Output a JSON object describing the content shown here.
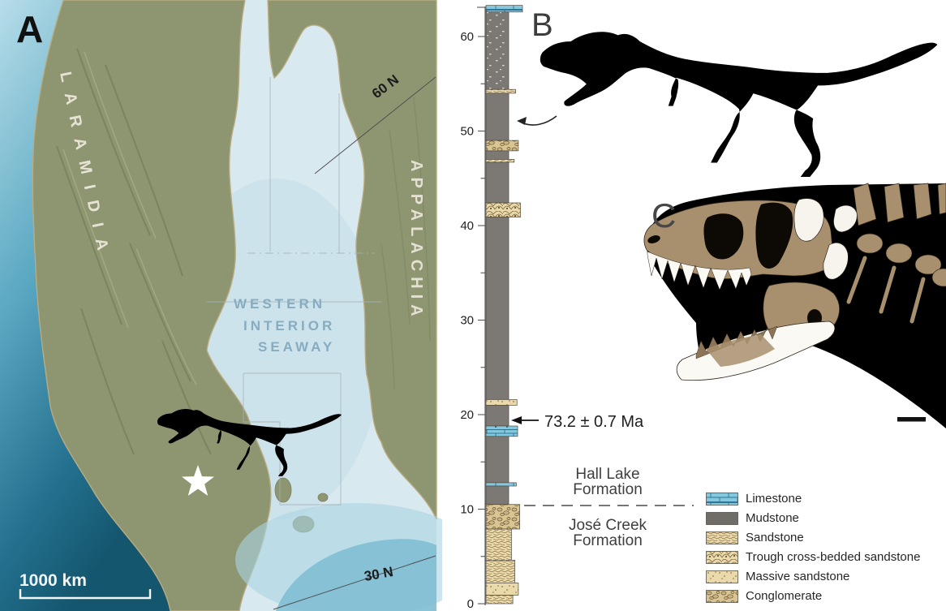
{
  "panels": {
    "a": "A",
    "b": "B",
    "c": "C"
  },
  "map": {
    "labels": {
      "laramidia": "LARAMIDIA",
      "appalachia": "APPALACHIA",
      "seaway": [
        "WESTERN",
        "INTERIOR",
        "SEAWAY"
      ],
      "lat60": "60 N",
      "lat30": "30 N",
      "scale": "1000 km"
    },
    "markers": {
      "locality": "white star at tyrannosaur locality, southern Laramidia",
      "silhouette": "tyrannosaur silhouette"
    },
    "colors": {
      "seaway": "#d9e9f0",
      "land": "#8e9671",
      "ocean_deep": "#1d6a85",
      "seaway_text": "#87acbf"
    }
  },
  "chart_data": {
    "type": "stratigraphic-column",
    "units": "m",
    "ylim": [
      0,
      63.5
    ],
    "major_tick": 10,
    "minor_tick": 5,
    "tick_labels": [
      0,
      10,
      20,
      30,
      40,
      50,
      60
    ],
    "age_annotation": {
      "height_m": 19.7,
      "label": "73.2 ± 0.7 Ma"
    },
    "specimen_level_m": 52,
    "formation_boundary_m": 10.5,
    "formations": [
      {
        "name_lines": [
          "Hall Lake",
          "Formation"
        ],
        "position": "above-boundary"
      },
      {
        "name_lines": [
          "José Creek",
          "Formation"
        ],
        "position": "below-boundary"
      }
    ],
    "beds": [
      {
        "base": 62.6,
        "top": 63.3,
        "lith": "limestone",
        "extent": 1.0
      },
      {
        "base": 54.4,
        "top": 62.6,
        "lith": "mudstone_silty",
        "extent": 0
      },
      {
        "base": 54.0,
        "top": 54.4,
        "lith": "sandstone",
        "extent": 0.5
      },
      {
        "base": 49.0,
        "top": 54.0,
        "lith": "mudstone",
        "extent": 0
      },
      {
        "base": 47.9,
        "top": 49.0,
        "lith": "conglomerate",
        "extent": 0.7
      },
      {
        "base": 47.0,
        "top": 47.9,
        "lith": "mudstone",
        "extent": 0
      },
      {
        "base": 46.7,
        "top": 47.0,
        "lith": "sandstone",
        "extent": 0.4
      },
      {
        "base": 42.4,
        "top": 46.7,
        "lith": "mudstone",
        "extent": 0
      },
      {
        "base": 40.9,
        "top": 42.4,
        "lith": "trough",
        "extent": 0.85
      },
      {
        "base": 21.6,
        "top": 40.9,
        "lith": "mudstone",
        "extent": 0
      },
      {
        "base": 21.0,
        "top": 21.6,
        "lith": "massive",
        "extent": 0.6
      },
      {
        "base": 18.8,
        "top": 21.0,
        "lith": "mudstone",
        "extent": 0
      },
      {
        "base": 18.4,
        "top": 18.8,
        "lith": "limestone_rubbly",
        "extent": 0.65
      },
      {
        "base": 17.7,
        "top": 18.4,
        "lith": "limestone",
        "extent": 0.65
      },
      {
        "base": 12.8,
        "top": 17.7,
        "lith": "mudstone",
        "extent": 0
      },
      {
        "base": 12.45,
        "top": 12.8,
        "lith": "limestone",
        "extent": 0.55
      },
      {
        "base": 10.5,
        "top": 12.45,
        "lith": "mudstone",
        "extent": 0
      },
      {
        "base": 7.9,
        "top": 10.5,
        "lith": "conglomerate",
        "extent": 0.8
      },
      {
        "base": 4.6,
        "top": 7.9,
        "lith": "sandstone",
        "extent": 0.2
      },
      {
        "base": 2.2,
        "top": 4.6,
        "lith": "sandstone",
        "extent": 0.45
      },
      {
        "base": 0.9,
        "top": 2.2,
        "lith": "massive",
        "extent": 0.7
      },
      {
        "base": 0.0,
        "top": 0.9,
        "lith": "sandstone",
        "extent": 0.3
      }
    ],
    "legend": [
      {
        "label": "Limestone",
        "lith": "limestone"
      },
      {
        "label": "Mudstone",
        "lith": "mudstone"
      },
      {
        "label": "Sandstone",
        "lith": "sandstone"
      },
      {
        "label": "Trough cross-bedded sandstone",
        "lith": "trough"
      },
      {
        "label": "Massive sandstone",
        "lith": "massive"
      },
      {
        "label": "Conglomerate",
        "lith": "conglomerate"
      }
    ]
  }
}
